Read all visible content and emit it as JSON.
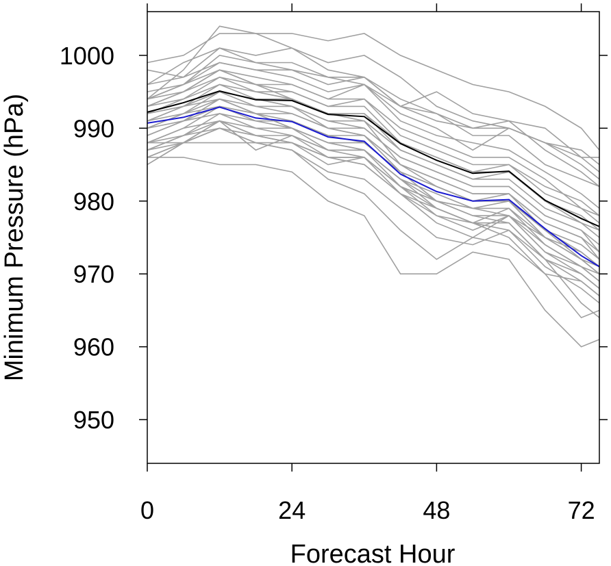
{
  "chart_data": {
    "type": "line",
    "xlabel": "Forecast Hour",
    "ylabel": "Minimum Pressure (hPa)",
    "xlim": [
      0,
      75
    ],
    "ylim": [
      944,
      1006
    ],
    "xticks": [
      0,
      24,
      48,
      72
    ],
    "yticks": [
      950,
      960,
      970,
      980,
      990,
      1000
    ],
    "x": [
      0,
      6,
      12,
      18,
      24,
      30,
      36,
      42,
      48,
      54,
      60,
      66,
      72,
      75
    ],
    "grid": false,
    "colors": {
      "members": "#a0a0a0",
      "ensemble_mean": "#000000",
      "highlight": "#1a1ad0"
    },
    "members": [
      [
        994,
        998,
        1004,
        1003,
        1003,
        1002,
        1003,
        1000,
        998,
        996,
        995,
        993,
        990,
        987
      ],
      [
        999,
        1000,
        1003,
        1003,
        1001,
        999,
        1000,
        997,
        993,
        991,
        990,
        988,
        987,
        985
      ],
      [
        996,
        999,
        1001,
        1000,
        1001,
        998,
        997,
        993,
        995,
        992,
        991,
        990,
        986,
        986
      ],
      [
        998,
        997,
        999,
        998,
        998,
        996,
        997,
        993,
        992,
        989,
        989,
        985,
        983,
        982
      ],
      [
        995,
        996,
        999,
        998,
        997,
        995,
        996,
        992,
        990,
        987,
        990,
        988,
        985,
        983
      ],
      [
        994,
        996,
        998,
        997,
        996,
        994,
        996,
        991,
        989,
        988,
        987,
        984,
        981,
        979
      ],
      [
        993,
        995,
        997,
        996,
        996,
        994,
        994,
        990,
        988,
        986,
        986,
        983,
        979,
        978
      ],
      [
        994,
        995,
        998,
        996,
        995,
        993,
        994,
        989,
        987,
        985,
        985,
        982,
        980,
        978
      ],
      [
        992,
        994,
        997,
        995,
        995,
        993,
        993,
        988,
        986,
        984,
        985,
        981,
        979,
        977
      ],
      [
        993,
        994,
        996,
        995,
        994,
        992,
        992,
        988,
        986,
        984,
        984,
        980,
        978,
        976
      ],
      [
        991,
        993,
        996,
        994,
        994,
        992,
        992,
        987,
        985,
        983,
        984,
        980,
        977,
        976
      ],
      [
        992,
        993,
        995,
        994,
        993,
        991,
        991,
        987,
        985,
        983,
        983,
        979,
        977,
        975
      ],
      [
        990,
        992,
        995,
        993,
        993,
        991,
        990,
        986,
        984,
        982,
        982,
        978,
        976,
        974
      ],
      [
        991,
        993,
        994,
        993,
        992,
        990,
        990,
        986,
        984,
        982,
        982,
        978,
        976,
        973
      ],
      [
        989,
        991,
        994,
        992,
        992,
        990,
        989,
        985,
        983,
        981,
        981,
        977,
        975,
        973
      ],
      [
        990,
        992,
        993,
        992,
        991,
        989,
        989,
        985,
        983,
        981,
        981,
        976,
        974,
        972
      ],
      [
        988,
        990,
        993,
        991,
        991,
        989,
        988,
        984,
        982,
        980,
        980,
        976,
        973,
        971
      ],
      [
        989,
        991,
        992,
        991,
        990,
        988,
        988,
        984,
        982,
        980,
        980,
        975,
        972,
        970
      ],
      [
        987,
        989,
        992,
        990,
        990,
        988,
        987,
        983,
        981,
        979,
        979,
        974,
        971,
        969
      ],
      [
        988,
        990,
        991,
        990,
        989,
        987,
        987,
        983,
        980,
        978,
        978,
        973,
        970,
        968
      ],
      [
        986,
        988,
        991,
        989,
        989,
        987,
        986,
        982,
        980,
        978,
        977,
        972,
        970,
        968
      ],
      [
        987,
        989,
        990,
        989,
        988,
        986,
        986,
        982,
        979,
        977,
        977,
        972,
        969,
        967
      ],
      [
        985,
        988,
        990,
        988,
        988,
        986,
        985,
        981,
        979,
        977,
        976,
        971,
        968,
        966
      ],
      [
        994,
        996,
        1000,
        999,
        998,
        997,
        996,
        993,
        991,
        990,
        991,
        987,
        984,
        982
      ],
      [
        996,
        997,
        1001,
        999,
        999,
        997,
        997,
        994,
        992,
        990,
        990,
        988,
        986,
        984
      ],
      [
        993,
        995,
        998,
        996,
        994,
        992,
        991,
        985,
        982,
        980,
        981,
        977,
        975,
        972
      ],
      [
        991,
        992,
        994,
        992,
        990,
        988,
        987,
        983,
        979,
        977,
        979,
        975,
        973,
        971
      ],
      [
        988,
        989,
        991,
        987,
        989,
        986,
        986,
        981,
        977,
        975,
        978,
        974,
        971,
        970
      ],
      [
        987,
        988,
        991,
        989,
        988,
        985,
        986,
        982,
        980,
        979,
        978,
        975,
        972,
        971
      ],
      [
        990,
        991,
        993,
        992,
        990,
        987,
        987,
        982,
        978,
        976,
        978,
        973,
        971,
        969
      ],
      [
        986,
        988,
        990,
        988,
        987,
        984,
        983,
        979,
        975,
        974,
        976,
        972,
        966,
        964
      ],
      [
        986,
        986,
        985,
        985,
        984,
        980,
        978,
        970,
        970,
        973,
        972,
        965,
        960,
        961
      ],
      [
        988,
        988,
        988,
        988,
        987,
        983,
        981,
        976,
        972,
        975,
        974,
        970,
        964,
        965
      ],
      [
        992,
        993,
        995,
        994,
        993,
        990,
        989,
        984,
        980,
        979,
        980,
        976,
        972,
        970
      ],
      [
        985,
        988,
        990,
        989,
        988,
        986,
        985,
        981,
        978,
        977,
        975,
        970,
        969,
        967
      ]
    ],
    "ensemble_mean": [
      992.2,
      993.5,
      995.1,
      993.9,
      993.8,
      991.9,
      991.6,
      987.9,
      985.6,
      983.8,
      984.1,
      980.1,
      977.6,
      976.5
    ],
    "highlight": [
      990.7,
      991.5,
      992.9,
      991.4,
      990.9,
      988.8,
      988.2,
      983.7,
      981.3,
      980.0,
      980.2,
      976.2,
      972.5,
      971.0
    ]
  }
}
